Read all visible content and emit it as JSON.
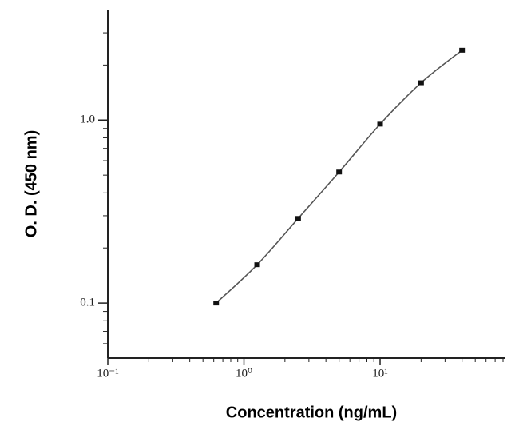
{
  "chart_data": {
    "type": "line",
    "xlabel": "Concentration (ng/mL)",
    "ylabel": "O. D. (450 nm)",
    "x": [
      0.625,
      1.25,
      2.5,
      5,
      10,
      20,
      40
    ],
    "series": [
      {
        "color": "#555555",
        "values": [
          0.1,
          0.162,
          0.29,
          0.52,
          0.95,
          1.6,
          2.41
        ]
      }
    ],
    "xscale": "log",
    "yscale": "log",
    "xlim": [
      0.1,
      80
    ],
    "ylim": [
      0.05,
      3.9
    ],
    "xticks": [
      {
        "value": 0.1,
        "label": "10⁻¹"
      },
      {
        "value": 1,
        "label": "10⁰"
      },
      {
        "value": 10,
        "label": "10¹"
      }
    ],
    "xminor_ticks": [
      0.2,
      0.3,
      0.4,
      0.5,
      0.6,
      0.7,
      0.8,
      0.9,
      2,
      3,
      4,
      5,
      6,
      7,
      8,
      9,
      20,
      30,
      40,
      50,
      60,
      70,
      80
    ],
    "yticks": [
      0.1,
      {
        "value": 1,
        "label": "1.0"
      }
    ],
    "yminor_ticks": [
      0.06,
      0.07,
      0.08,
      0.09,
      0.2,
      0.3,
      0.4,
      0.5,
      0.6,
      0.7,
      0.8,
      0.9,
      2,
      3
    ],
    "grid": false
  }
}
